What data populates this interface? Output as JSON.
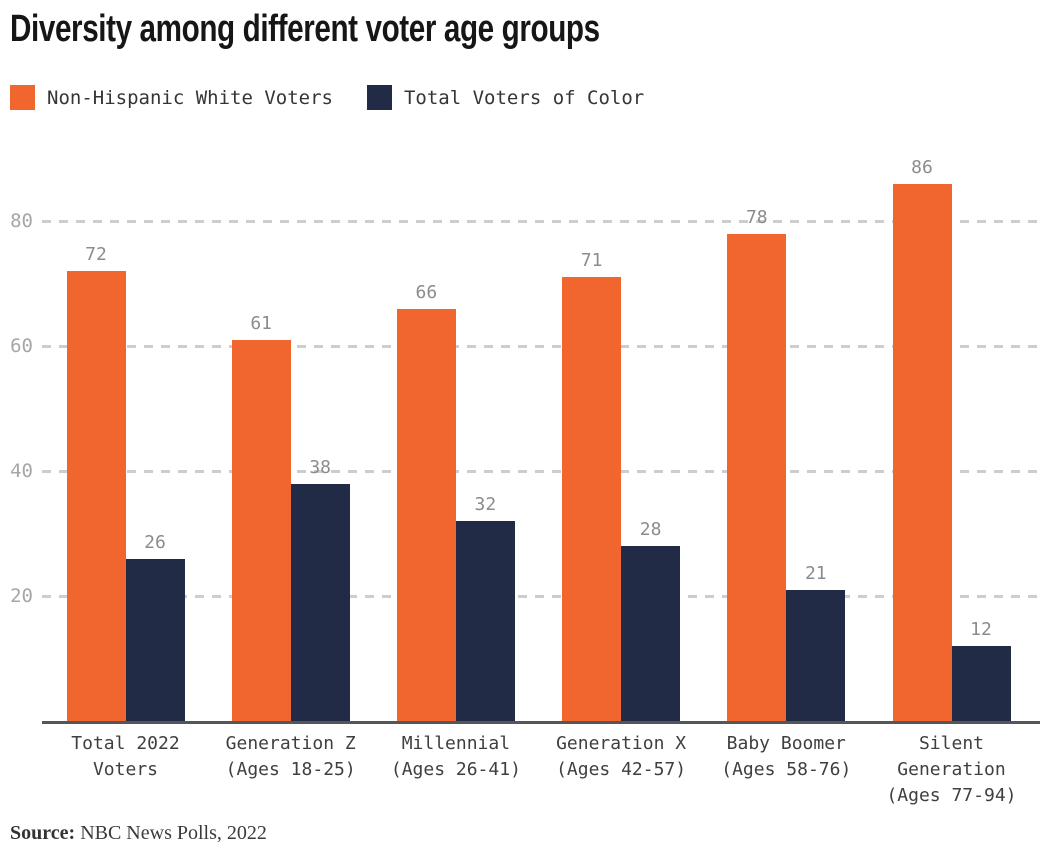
{
  "title": "Diversity among different voter age groups",
  "legend": {
    "items": [
      {
        "label": "Non-Hispanic White Voters",
        "color": "#F1662F"
      },
      {
        "label": "Total Voters of Color",
        "color": "#212B45"
      }
    ]
  },
  "source": {
    "label": "Source:",
    "text": "NBC News Polls, 2022"
  },
  "chart_data": {
    "type": "bar",
    "title": "Diversity among different voter age groups",
    "categories": [
      "Total 2022 Voters",
      "Generation Z (Ages 18-25)",
      "Millennial (Ages 26-41)",
      "Generation X (Ages 42-57)",
      "Baby Boomer (Ages 58-76)",
      "Silent Generation (Ages 77-94)"
    ],
    "category_label_lines": [
      [
        "Total 2022",
        "Voters"
      ],
      [
        "Generation Z",
        "(Ages 18-25)"
      ],
      [
        "Millennial",
        "(Ages 26-41)"
      ],
      [
        "Generation X",
        "(Ages 42-57)"
      ],
      [
        "Baby Boomer",
        "(Ages 58-76)"
      ],
      [
        "Silent",
        "Generation",
        "(Ages 77-94)"
      ]
    ],
    "series": [
      {
        "name": "Non-Hispanic White Voters",
        "color": "#F1662F",
        "values": [
          72,
          61,
          66,
          71,
          78,
          86
        ]
      },
      {
        "name": "Total Voters of Color",
        "color": "#212B45",
        "values": [
          26,
          38,
          32,
          28,
          21,
          12
        ]
      }
    ],
    "xlabel": "",
    "ylabel": "",
    "ylim": [
      0,
      93
    ],
    "yticks": [
      20,
      40,
      60,
      80
    ],
    "grid": "horizontal-dashed",
    "legend_position": "top-left",
    "value_labels": true,
    "source": "NBC News Polls, 2022"
  },
  "colors": {
    "grid": "#CDCDCD",
    "axis": "#55565A",
    "value_label": "#8C8C8C",
    "tick_label": "#A6A6A6",
    "category_label": "#3F3F3F"
  }
}
